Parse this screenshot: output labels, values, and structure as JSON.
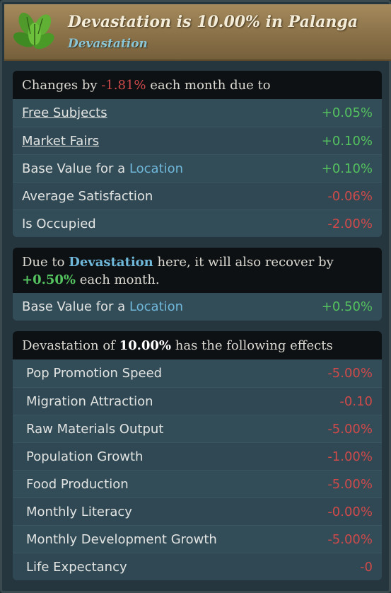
{
  "header": {
    "icon": "leaves-icon",
    "title": "Devastation is 10.00% in Palanga",
    "subtitle": "Devastation"
  },
  "changes": {
    "prefix": "Changes by ",
    "amount": "-1.81%",
    "suffix": " each month due to",
    "rows": [
      {
        "label": "Free Subjects",
        "value": "+0.05%"
      },
      {
        "label": "Market Fairs",
        "value": "+0.10%"
      },
      {
        "label_prefix": "Base Value for a ",
        "label_link": "Location",
        "value": "+0.10%"
      },
      {
        "label": "Average Satisfaction",
        "value": "-0.06%"
      },
      {
        "label": "Is Occupied",
        "value": "-2.00%"
      }
    ]
  },
  "recovery": {
    "prefix": "Due to ",
    "keyword": "Devastation",
    "middle": " here, it will also recover by",
    "amount": "+0.50%",
    "suffix": " each month.",
    "rows": [
      {
        "label_prefix": "Base Value for a ",
        "label_link": "Location",
        "value": "+0.50%"
      }
    ]
  },
  "effects": {
    "prefix": "Devastation of ",
    "amount": "10.00%",
    "suffix": " has the following effects",
    "rows": [
      {
        "label": "Pop Promotion Speed",
        "value": "-5.00%"
      },
      {
        "label": "Migration Attraction",
        "value": "-0.10"
      },
      {
        "label": "Raw Materials Output",
        "value": "-5.00%"
      },
      {
        "label": "Population Growth",
        "value": "-1.00%"
      },
      {
        "label": "Food Production",
        "value": "-5.00%"
      },
      {
        "label": "Monthly Literacy",
        "value": "-0.00%"
      },
      {
        "label": "Monthly Development Growth",
        "value": "-5.00%"
      },
      {
        "label": "Life Expectancy",
        "value": "-0"
      }
    ]
  },
  "colors": {
    "positive": "#54c25e",
    "negative": "#d04a4a",
    "link_blue": "#6fb8da",
    "header_bg": "#8b7148"
  }
}
